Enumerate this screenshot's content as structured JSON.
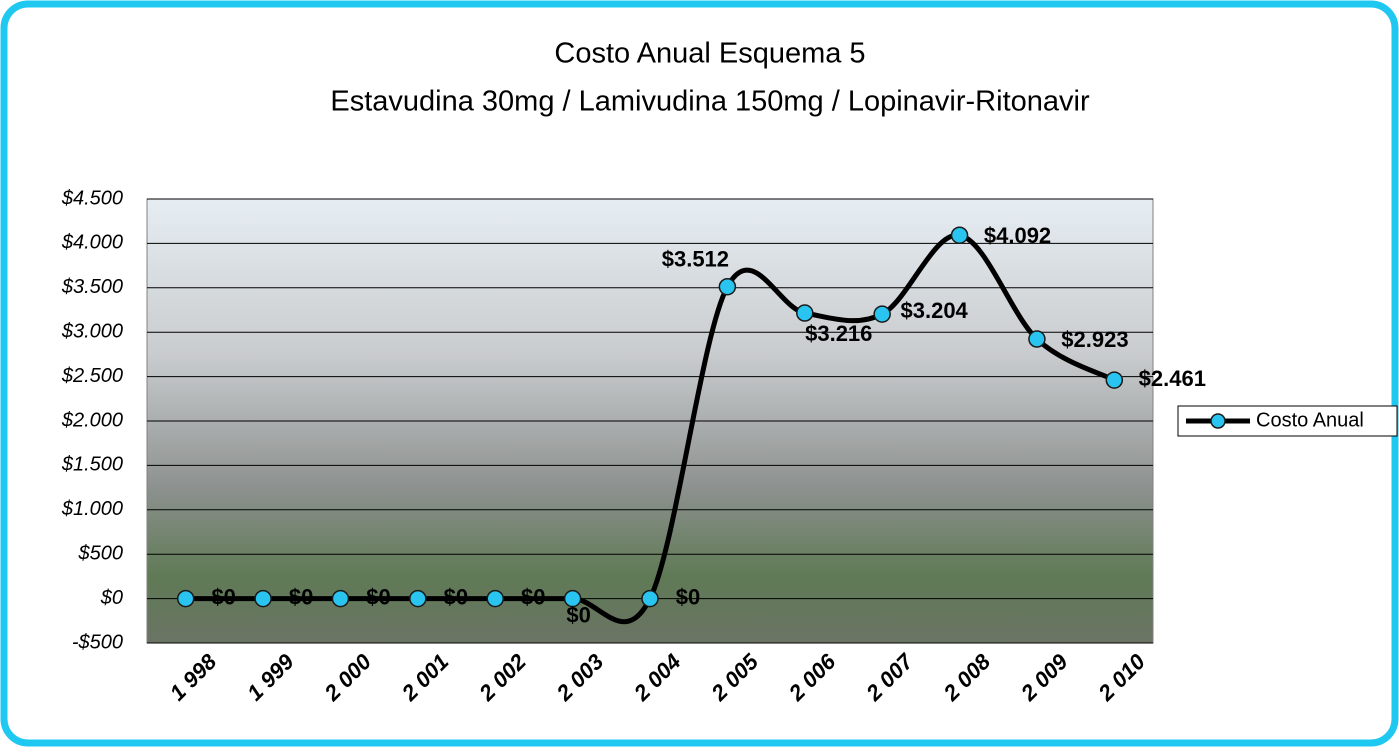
{
  "chart_data": {
    "type": "line",
    "title": "Costo Anual Esquema 5",
    "subtitle": "Estavudina 30mg / Lamivudina 150mg / Lopinavir-Ritonavir",
    "categories": [
      "1 998",
      "1 999",
      "2 000",
      "2 001",
      "2 002",
      "2 003",
      "2 004",
      "2 005",
      "2 006",
      "2 007",
      "2 008",
      "2 009",
      "2 010"
    ],
    "series": [
      {
        "name": "Costo Anual",
        "color": "#000000",
        "marker_color": "#29c5f0",
        "values": [
          0,
          0,
          0,
          0,
          0,
          0,
          0,
          3512,
          3216,
          3204,
          4092,
          2923,
          2461
        ],
        "value_labels": [
          "$0",
          "$0",
          "$0",
          "$0",
          "$0",
          "$0",
          "$0",
          "$3.512",
          "$3.216",
          "$3.204",
          "$4.092",
          "$2.923",
          "$2.461"
        ]
      }
    ],
    "ylim": [
      -500,
      4500
    ],
    "yticks": [
      {
        "value": -500,
        "label": "-$500"
      },
      {
        "value": 0,
        "label": "$0"
      },
      {
        "value": 500,
        "label": "$500"
      },
      {
        "value": 1000,
        "label": "$1.000"
      },
      {
        "value": 1500,
        "label": "$1.500"
      },
      {
        "value": 2000,
        "label": "$2.000"
      },
      {
        "value": 2500,
        "label": "$2.500"
      },
      {
        "value": 3000,
        "label": "$3.000"
      },
      {
        "value": 3500,
        "label": "$3.500"
      },
      {
        "value": 4000,
        "label": "$4.000"
      },
      {
        "value": 4500,
        "label": "$4.500"
      }
    ],
    "grid": true,
    "smooth": true,
    "legend": "right"
  }
}
